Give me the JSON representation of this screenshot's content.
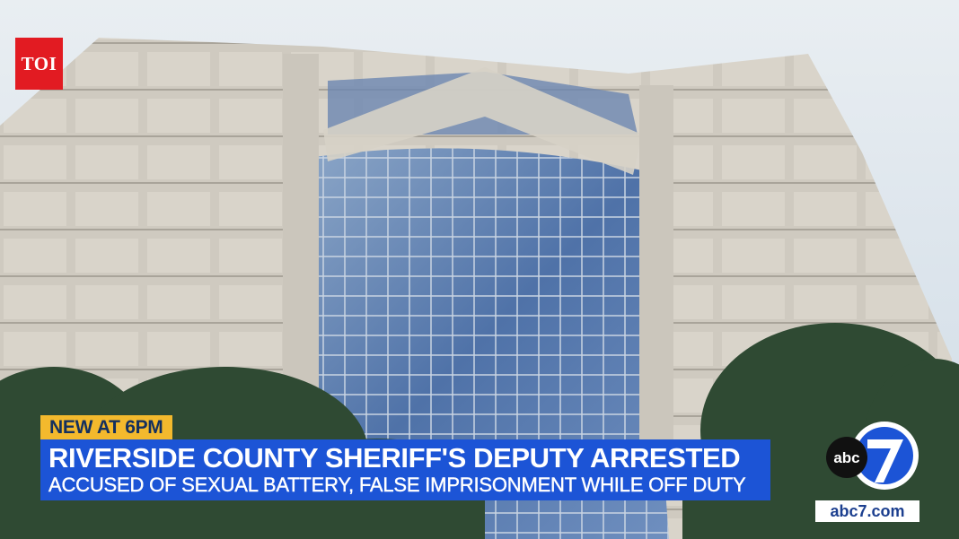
{
  "watermark": {
    "text": "TOI",
    "color": "#e21b22"
  },
  "chyron": {
    "tag": "NEW AT 6PM",
    "headline": "RIVERSIDE COUNTY SHERIFF'S DEPUTY ARRESTED",
    "subheadline": "ACCUSED OF SEXUAL BATTERY, FALSE IMPRISONMENT WHILE OFF DUTY",
    "tag_color": "#f3b92d",
    "bar_color": "#1c54d6"
  },
  "station": {
    "logo_text": "abc",
    "channel": "7",
    "url": "abc7.com"
  }
}
